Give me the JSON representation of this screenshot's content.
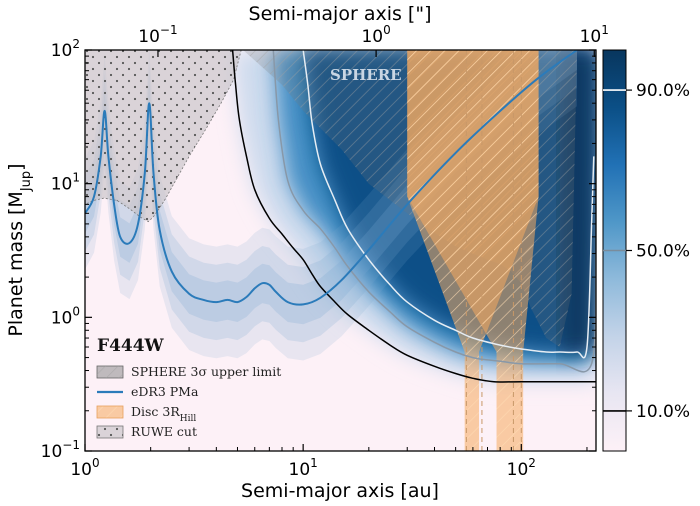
{
  "chart_data": {
    "type": "line",
    "panel_label": "F444W",
    "region_label": "SPHERE",
    "xlabel": "Semi-major axis [au]",
    "ylabel_main": "Planet mass [M",
    "ylabel_sub": "Jup",
    "ylabel_close": "]",
    "top_xlabel": "Semi-major axis [\"]",
    "xscale": "log",
    "yscale": "log",
    "xlim": [
      1,
      220
    ],
    "ylim": [
      0.1,
      100
    ],
    "xticks": [
      {
        "value": 1,
        "base": "10",
        "exp": "0"
      },
      {
        "value": 10,
        "base": "10",
        "exp": "1"
      },
      {
        "value": 100,
        "base": "10",
        "exp": "2"
      }
    ],
    "yticks": [
      {
        "value": 0.1,
        "base": "10",
        "exp": "−1"
      },
      {
        "value": 1,
        "base": "10",
        "exp": "0"
      },
      {
        "value": 10,
        "base": "10",
        "exp": "1"
      },
      {
        "value": 100,
        "base": "10",
        "exp": "2"
      }
    ],
    "top_xticks": [
      {
        "value": 0.1,
        "base": "10",
        "exp": "−1"
      },
      {
        "value": 1,
        "base": "10",
        "exp": "0"
      },
      {
        "value": 10,
        "base": "10",
        "exp": "1"
      }
    ],
    "arcsec_per_au_factor": 21.6,
    "colorbar": {
      "range": [
        0,
        100
      ],
      "ticks": [
        {
          "value": 90,
          "label": "90.0%",
          "line_color": "#ffffff"
        },
        {
          "value": 50,
          "label": "50.0%",
          "line_color": "#7a8c9c"
        },
        {
          "value": 10,
          "label": "10.0%",
          "line_color": "#000000"
        }
      ],
      "colors": [
        "#fdf1f7",
        "#e8e6f2",
        "#c3d3e8",
        "#8fbadb",
        "#4f97c8",
        "#2171b5",
        "#0b4f86",
        "#08365e"
      ]
    },
    "legend": [
      {
        "label": "SPHERE 3σ upper limit",
        "color": "#8c8c8c",
        "style": "hatch-gray"
      },
      {
        "label": "eDR3 PMa",
        "color": "#2b7bba",
        "style": "line"
      },
      {
        "label": "Disc 3R",
        "sub": "Hill",
        "color": "#f6b36d",
        "style": "hatch-orange"
      },
      {
        "label": "RUWE cut",
        "color": "#8c8c8c",
        "style": "dots"
      }
    ],
    "series": [
      {
        "name": "eDR3 PMa",
        "color": "#2b7bba",
        "x": [
          1.0,
          1.1,
          1.18,
          1.23,
          1.28,
          1.36,
          1.45,
          1.6,
          1.75,
          1.88,
          1.97,
          2.06,
          2.2,
          2.5,
          3.0,
          3.5,
          4.0,
          4.5,
          5.0,
          5.5,
          6.0,
          6.5,
          7.0,
          7.5,
          8.5,
          10,
          12,
          15,
          20,
          30,
          50,
          80,
          120,
          180
        ],
        "y": [
          6.0,
          8.0,
          16.0,
          35.0,
          16.0,
          7.0,
          4.0,
          3.6,
          5.0,
          12.0,
          40.0,
          12.0,
          4.5,
          2.2,
          1.5,
          1.35,
          1.3,
          1.35,
          1.3,
          1.42,
          1.65,
          1.8,
          1.75,
          1.55,
          1.3,
          1.25,
          1.4,
          1.9,
          3.2,
          7.0,
          17.0,
          35.0,
          62.0,
          100.0
        ]
      },
      {
        "name": "10% contour",
        "color": "#000000",
        "x": [
          4.75,
          4.9,
          5.1,
          5.5,
          6.0,
          7.0,
          8.0,
          9.0,
          10,
          11,
          12,
          14,
          16,
          20,
          25,
          30,
          40,
          50,
          60,
          75,
          100,
          150,
          220
        ],
        "y": [
          100,
          55,
          30,
          16,
          9.0,
          5.5,
          4.2,
          3.3,
          2.7,
          2.1,
          1.7,
          1.3,
          1.05,
          0.8,
          0.62,
          0.52,
          0.43,
          0.38,
          0.35,
          0.33,
          0.33,
          0.33,
          0.33
        ]
      },
      {
        "name": "50% contour",
        "color": "#8898a8",
        "x": [
          7.3,
          7.7,
          8.5,
          10,
          12,
          14,
          16,
          20,
          25,
          30,
          40,
          50,
          60,
          70,
          80,
          100,
          150,
          210,
          220
        ],
        "y": [
          100,
          30,
          10.5,
          6.3,
          4.6,
          3.3,
          2.4,
          1.55,
          1.1,
          0.85,
          0.65,
          0.55,
          0.5,
          0.48,
          0.47,
          0.45,
          0.45,
          0.45,
          3.0
        ]
      },
      {
        "name": "90% contour",
        "color": "#e6edf4",
        "x": [
          10.0,
          10.5,
          11,
          12,
          14,
          16,
          20,
          25,
          30,
          40,
          50,
          60,
          80,
          100,
          130,
          150,
          180,
          200,
          210,
          215
        ],
        "y": [
          100,
          55,
          28,
          14,
          7.5,
          4.6,
          2.7,
          1.75,
          1.3,
          0.95,
          0.8,
          0.7,
          0.62,
          0.58,
          0.55,
          0.55,
          0.55,
          0.6,
          5.0,
          16.0
        ]
      }
    ],
    "sphere_limit": {
      "x": [
        1.0,
        5.3,
        8.0,
        10,
        15,
        20,
        30,
        40,
        50,
        60,
        70,
        80,
        90,
        100,
        110,
        130,
        150,
        170,
        180
      ],
      "y": [
        100,
        100,
        55,
        35,
        18,
        10,
        6.0,
        4.3,
        3.4,
        3.0,
        2.7,
        2.5,
        2.2,
        1.8,
        1.2,
        0.7,
        0.6,
        1.5,
        100
      ]
    },
    "ruwe_cut": {
      "x": [
        1.0,
        5.2,
        4.8,
        4.2,
        3.6,
        3.0,
        2.6,
        2.35,
        2.2,
        2.05,
        1.95,
        1.8,
        1.6,
        1.4,
        1.22,
        1.1,
        1.0
      ],
      "y": [
        100,
        100,
        60,
        40,
        26,
        16,
        10.5,
        7.8,
        6.6,
        5.6,
        5.2,
        5.6,
        6.5,
        7.5,
        7.8,
        7.5,
        7.0
      ]
    },
    "disc_bands": [
      {
        "x_lo_bottom": 55,
        "x_hi_bottom": 64,
        "x_lo_top": 30,
        "x_hi_top": 120
      },
      {
        "x_lo_bottom": 77,
        "x_hi_bottom": 102,
        "x_lo_top": 30,
        "x_hi_top": 120
      }
    ],
    "disc_dashed_x": [
      56,
      66,
      92,
      100
    ]
  }
}
